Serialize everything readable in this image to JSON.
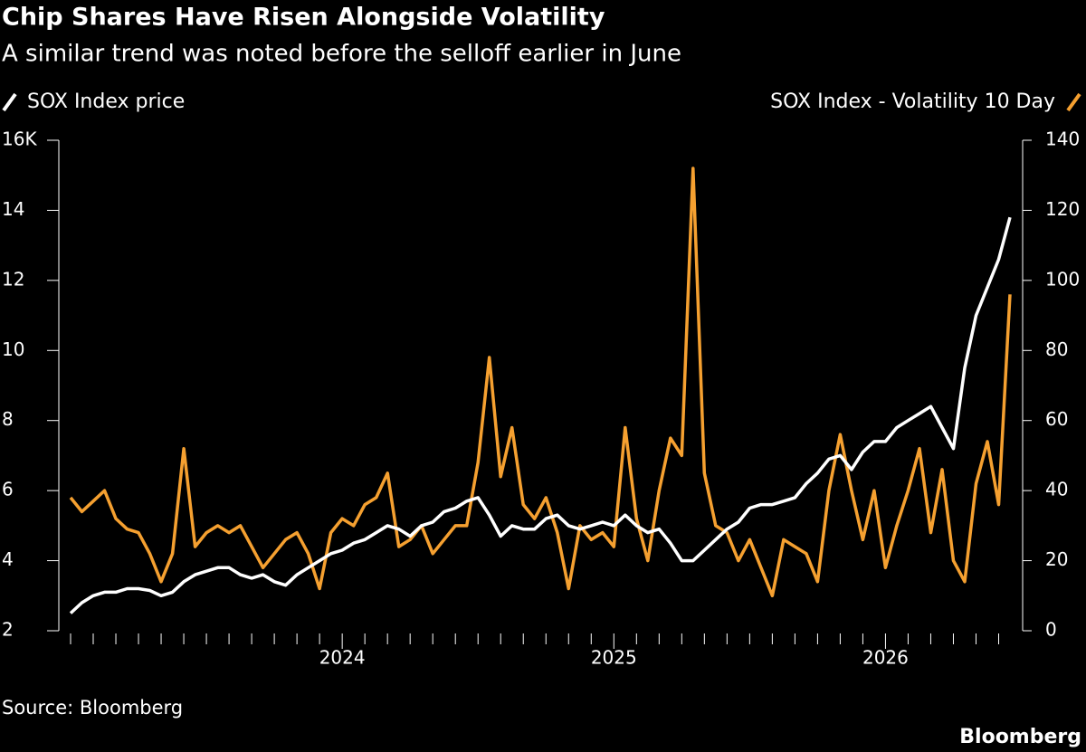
{
  "chart_data": {
    "type": "line",
    "title": "Chip Shares Have Risen Alongside Volatility",
    "subtitle": "A similar trend was noted before the selloff earlier in June",
    "source": "Source: Bloomberg",
    "credit": "Bloomberg",
    "categories": [
      null,
      null,
      null,
      null,
      null,
      null,
      null,
      null,
      null,
      null,
      null,
      null,
      null,
      null,
      null,
      null,
      null,
      null,
      null,
      null,
      null,
      null,
      null,
      null,
      "2024",
      null,
      null,
      null,
      null,
      null,
      null,
      null,
      null,
      null,
      null,
      null,
      null,
      null,
      null,
      null,
      null,
      null,
      null,
      null,
      null,
      null,
      null,
      null,
      "2025",
      null,
      null,
      null,
      null,
      null,
      null,
      null,
      null,
      null,
      null,
      null,
      null,
      null,
      null,
      null,
      null,
      null,
      null,
      null,
      null,
      null,
      null,
      null,
      "2026",
      null,
      null,
      null,
      null,
      null,
      null,
      null,
      null,
      null,
      null,
      null
    ],
    "ylim": [
      2,
      16
    ],
    "yticks": [
      2,
      4,
      6,
      8,
      10,
      12,
      14,
      {
        "value": 16,
        "label": "16K"
      }
    ],
    "y2lim": [
      0,
      140
    ],
    "y2ticks": [
      0,
      20,
      40,
      60,
      80,
      100,
      120,
      140
    ],
    "series": [
      {
        "name": "SOX Index price",
        "color": "#ffffff",
        "values": [
          2.5,
          2.8,
          3.0,
          3.1,
          3.1,
          3.2,
          3.2,
          3.15,
          3.0,
          3.1,
          3.4,
          3.6,
          3.7,
          3.8,
          3.8,
          3.6,
          3.5,
          3.6,
          3.4,
          3.3,
          3.6,
          3.8,
          4.0,
          4.2,
          4.3,
          4.5,
          4.6,
          4.8,
          5.0,
          4.9,
          4.7,
          5.0,
          5.1,
          5.4,
          5.5,
          5.7,
          5.8,
          5.3,
          4.7,
          5.0,
          4.9,
          4.9,
          5.2,
          5.3,
          5.0,
          4.9,
          5.0,
          5.1,
          5.0,
          5.3,
          5.0,
          4.8,
          4.9,
          4.5,
          4.0,
          4.0,
          4.3,
          4.6,
          4.9,
          5.1,
          5.5,
          5.6,
          5.6,
          5.7,
          5.8,
          6.2,
          6.5,
          6.9,
          7.0,
          6.6,
          7.1,
          7.4,
          7.4,
          7.8,
          8.0,
          8.2,
          8.4,
          7.8,
          7.2,
          9.5,
          11.0,
          11.8,
          12.6,
          13.8
        ]
      },
      {
        "name": "SOX Index - Volatility 10 Day",
        "color": "#f5a030",
        "axis": "y2",
        "values": [
          38,
          34,
          37,
          40,
          32,
          29,
          28,
          22,
          14,
          22,
          52,
          24,
          28,
          30,
          28,
          30,
          24,
          18,
          22,
          26,
          28,
          22,
          12,
          28,
          32,
          30,
          36,
          38,
          45,
          24,
          26,
          30,
          22,
          26,
          30,
          30,
          48,
          78,
          44,
          58,
          36,
          32,
          38,
          28,
          12,
          30,
          26,
          28,
          24,
          58,
          32,
          20,
          40,
          55,
          50,
          132,
          45,
          30,
          28,
          20,
          26,
          18,
          10,
          26,
          24,
          22,
          14,
          40,
          56,
          40,
          26,
          40,
          18,
          30,
          40,
          52,
          28,
          46,
          20,
          14,
          42,
          54,
          36,
          96
        ]
      }
    ]
  }
}
